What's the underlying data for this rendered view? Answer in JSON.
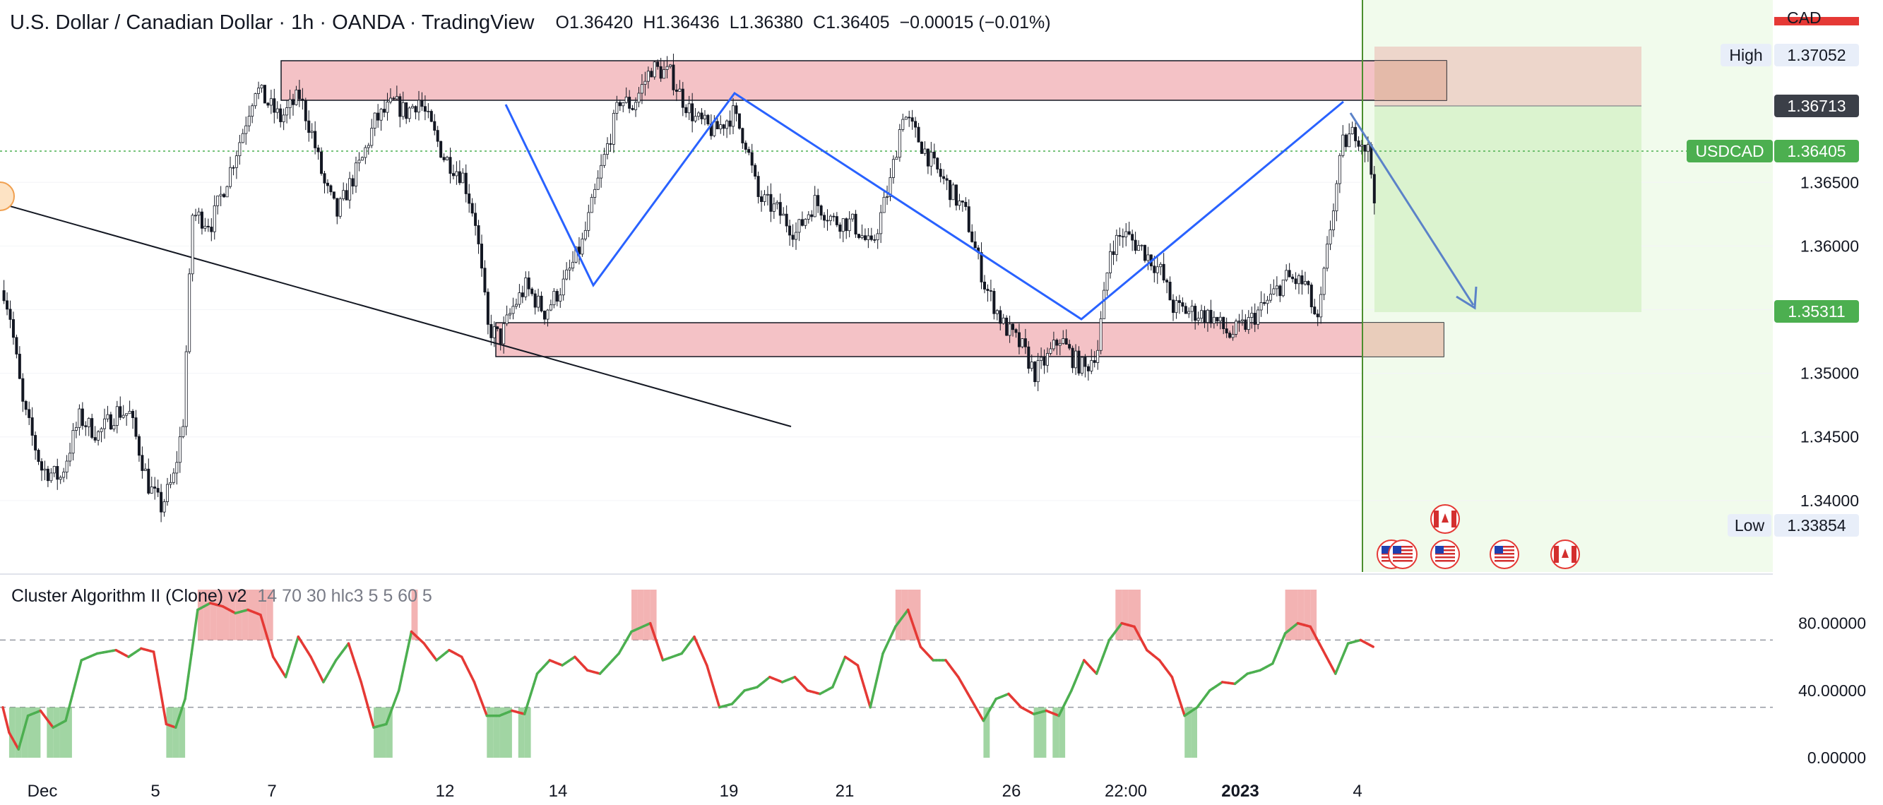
{
  "header": {
    "title": "U.S. Dollar / Canadian Dollar · 1h · OANDA · TradingView",
    "ohlc": [
      {
        "k": "O",
        "v": "1.36420"
      },
      {
        "k": "H",
        "v": "1.36436"
      },
      {
        "k": "L",
        "v": "1.36380"
      },
      {
        "k": "C",
        "v": "1.36405"
      },
      {
        "k": "",
        "v": "−0.00015 (−0.01%)"
      }
    ]
  },
  "currency_label": "CAD",
  "indicator": {
    "name": "Cluster Algorithm II (Clone) v2",
    "params": "14 70 30 hlc3 5 5 60 5"
  },
  "colors": {
    "zone": "#f4c2c6",
    "target": "#d8f2cc",
    "wave": "#2962ff",
    "candle": "#131722",
    "osc_up": "#4caf50",
    "osc_down": "#e53935",
    "tag_green": "#4caf50",
    "tag_dark": "#3b3f48"
  },
  "chart_data": [
    {
      "type": "candlestick",
      "symbol": "USDCAD",
      "x_ticks": [
        "Dec",
        "5",
        "7",
        "12",
        "14",
        "19",
        "21",
        "26",
        "22:00",
        "2023",
        "4"
      ],
      "y_ticks": [
        "1.34000",
        "1.34500",
        "1.35000",
        "1.35500",
        "1.36000",
        "1.36500"
      ],
      "ylim": [
        1.3345,
        1.376
      ],
      "path": [
        [
          0,
          1.3565
        ],
        [
          2,
          1.3545
        ],
        [
          6,
          1.3475
        ],
        [
          12,
          1.3425
        ],
        [
          18,
          1.3418
        ],
        [
          24,
          1.3465
        ],
        [
          30,
          1.3452
        ],
        [
          36,
          1.347
        ],
        [
          40,
          1.3468
        ],
        [
          46,
          1.3412
        ],
        [
          50,
          1.3395
        ],
        [
          54,
          1.3418
        ],
        [
          57,
          1.3463
        ],
        [
          60,
          1.3625
        ],
        [
          66,
          1.3618
        ],
        [
          72,
          1.366
        ],
        [
          76,
          1.369
        ],
        [
          80,
          1.3725
        ],
        [
          84,
          1.3712
        ],
        [
          88,
          1.37
        ],
        [
          94,
          1.3718
        ],
        [
          98,
          1.3688
        ],
        [
          102,
          1.3648
        ],
        [
          106,
          1.3625
        ],
        [
          110,
          1.3648
        ],
        [
          114,
          1.3668
        ],
        [
          118,
          1.3698
        ],
        [
          124,
          1.3712
        ],
        [
          128,
          1.3705
        ],
        [
          132,
          1.3715
        ],
        [
          136,
          1.3693
        ],
        [
          140,
          1.367
        ],
        [
          146,
          1.3655
        ],
        [
          150,
          1.362
        ],
        [
          154,
          1.3535
        ],
        [
          158,
          1.3528
        ],
        [
          162,
          1.3552
        ],
        [
          166,
          1.3568
        ],
        [
          172,
          1.3548
        ],
        [
          178,
          1.357
        ],
        [
          184,
          1.3602
        ],
        [
          190,
          1.366
        ],
        [
          196,
          1.3715
        ],
        [
          200,
          1.371
        ],
        [
          206,
          1.374
        ],
        [
          212,
          1.3735
        ],
        [
          216,
          1.3715
        ],
        [
          220,
          1.37
        ],
        [
          226,
          1.369
        ],
        [
          232,
          1.3704
        ],
        [
          236,
          1.3682
        ],
        [
          240,
          1.3638
        ],
        [
          246,
          1.3628
        ],
        [
          252,
          1.361
        ],
        [
          258,
          1.3635
        ],
        [
          264,
          1.362
        ],
        [
          270,
          1.3618
        ],
        [
          276,
          1.3598
        ],
        [
          282,
          1.365
        ],
        [
          286,
          1.3705
        ],
        [
          290,
          1.3688
        ],
        [
          296,
          1.3662
        ],
        [
          300,
          1.3648
        ],
        [
          306,
          1.3625
        ],
        [
          312,
          1.357
        ],
        [
          318,
          1.3538
        ],
        [
          324,
          1.352
        ],
        [
          328,
          1.35
        ],
        [
          332,
          1.3512
        ],
        [
          336,
          1.3528
        ],
        [
          340,
          1.3512
        ],
        [
          344,
          1.3503
        ],
        [
          348,
          1.352
        ],
        [
          352,
          1.3598
        ],
        [
          356,
          1.361
        ],
        [
          362,
          1.3598
        ],
        [
          368,
          1.358
        ],
        [
          372,
          1.3552
        ],
        [
          378,
          1.3548
        ],
        [
          384,
          1.3545
        ],
        [
          390,
          1.353
        ],
        [
          396,
          1.354
        ],
        [
          402,
          1.3556
        ],
        [
          408,
          1.3575
        ],
        [
          414,
          1.357
        ],
        [
          418,
          1.3538
        ],
        [
          422,
          1.3615
        ],
        [
          426,
          1.368
        ],
        [
          430,
          1.369
        ],
        [
          434,
          1.3675
        ],
        [
          436,
          1.3641
        ]
      ]
    },
    {
      "type": "line",
      "name": "Cluster Algorithm II (Clone) v2",
      "y_ticks": [
        "0.00000",
        "40.00000",
        "80.00000"
      ],
      "ylim": [
        -5,
        100
      ],
      "levels": [
        70,
        30
      ],
      "path": [
        [
          0,
          30
        ],
        [
          2,
          15
        ],
        [
          5,
          5
        ],
        [
          8,
          25
        ],
        [
          12,
          28
        ],
        [
          16,
          18
        ],
        [
          20,
          22
        ],
        [
          25,
          58
        ],
        [
          30,
          62
        ],
        [
          36,
          64
        ],
        [
          40,
          60
        ],
        [
          44,
          65
        ],
        [
          48,
          63
        ],
        [
          52,
          20
        ],
        [
          55,
          18
        ],
        [
          58,
          35
        ],
        [
          62,
          88
        ],
        [
          66,
          92
        ],
        [
          70,
          90
        ],
        [
          74,
          86
        ],
        [
          78,
          88
        ],
        [
          82,
          85
        ],
        [
          86,
          60
        ],
        [
          90,
          48
        ],
        [
          94,
          72
        ],
        [
          98,
          60
        ],
        [
          102,
          45
        ],
        [
          106,
          58
        ],
        [
          110,
          68
        ],
        [
          114,
          45
        ],
        [
          118,
          18
        ],
        [
          122,
          20
        ],
        [
          126,
          40
        ],
        [
          130,
          75
        ],
        [
          134,
          68
        ],
        [
          138,
          58
        ],
        [
          142,
          64
        ],
        [
          146,
          60
        ],
        [
          150,
          45
        ],
        [
          154,
          25
        ],
        [
          158,
          25
        ],
        [
          162,
          28
        ],
        [
          166,
          26
        ],
        [
          170,
          50
        ],
        [
          174,
          58
        ],
        [
          178,
          55
        ],
        [
          182,
          60
        ],
        [
          186,
          52
        ],
        [
          190,
          50
        ],
        [
          196,
          62
        ],
        [
          200,
          75
        ],
        [
          206,
          80
        ],
        [
          210,
          58
        ],
        [
          216,
          62
        ],
        [
          220,
          72
        ],
        [
          224,
          55
        ],
        [
          228,
          30
        ],
        [
          232,
          32
        ],
        [
          236,
          40
        ],
        [
          240,
          42
        ],
        [
          244,
          48
        ],
        [
          248,
          45
        ],
        [
          252,
          48
        ],
        [
          256,
          40
        ],
        [
          260,
          38
        ],
        [
          264,
          42
        ],
        [
          268,
          60
        ],
        [
          272,
          55
        ],
        [
          276,
          30
        ],
        [
          280,
          62
        ],
        [
          284,
          78
        ],
        [
          288,
          88
        ],
        [
          292,
          66
        ],
        [
          296,
          58
        ],
        [
          300,
          58
        ],
        [
          304,
          48
        ],
        [
          308,
          35
        ],
        [
          312,
          22
        ],
        [
          316,
          35
        ],
        [
          320,
          38
        ],
        [
          324,
          30
        ],
        [
          328,
          26
        ],
        [
          332,
          28
        ],
        [
          336,
          25
        ],
        [
          340,
          40
        ],
        [
          344,
          58
        ],
        [
          348,
          50
        ],
        [
          352,
          70
        ],
        [
          356,
          80
        ],
        [
          360,
          78
        ],
        [
          364,
          64
        ],
        [
          368,
          58
        ],
        [
          372,
          48
        ],
        [
          376,
          25
        ],
        [
          380,
          30
        ],
        [
          384,
          40
        ],
        [
          388,
          45
        ],
        [
          392,
          44
        ],
        [
          396,
          50
        ],
        [
          400,
          52
        ],
        [
          404,
          56
        ],
        [
          408,
          74
        ],
        [
          412,
          80
        ],
        [
          416,
          78
        ],
        [
          420,
          64
        ],
        [
          424,
          50
        ],
        [
          428,
          68
        ],
        [
          432,
          70
        ],
        [
          436,
          66
        ]
      ]
    }
  ],
  "price_axis": {
    "high_label": "High",
    "high_value": "1.37052",
    "last_value": "1.36713",
    "symbol_tag": "USDCAD",
    "current_value": "1.36405",
    "target_value": "1.35311",
    "low_label": "Low",
    "low_value": "1.33854"
  }
}
